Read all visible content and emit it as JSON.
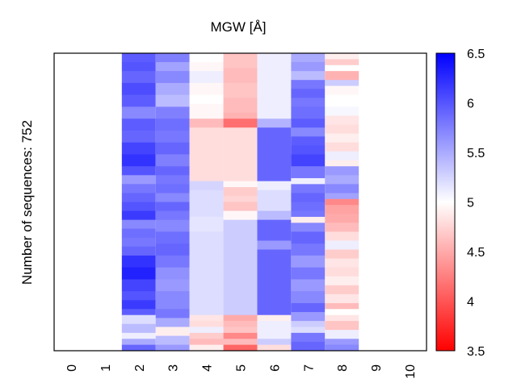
{
  "chart_data": {
    "type": "heatmap",
    "title": "MGW [Å]",
    "ylabel": "Number of sequences: 752",
    "xlabel": "",
    "x_ticks": [
      "0",
      "1",
      "2",
      "3",
      "4",
      "5",
      "6",
      "7",
      "8",
      "9",
      "10"
    ],
    "n_rows": 752,
    "colorbar": {
      "colormap": "bwr",
      "vmin": 3.5,
      "vmax": 6.5,
      "ticks": [
        "3.5",
        "4",
        "4.5",
        "5",
        "5.5",
        "6",
        "6.5"
      ],
      "low_color": "#ff0000",
      "mid_color": "#ffffff",
      "high_color": "#0000ff"
    },
    "columns": [
      {
        "x": 2,
        "bands": [
          [
            0.0,
            5.95
          ],
          [
            0.03,
            6.0
          ],
          [
            0.06,
            5.9
          ],
          [
            0.1,
            6.05
          ],
          [
            0.14,
            5.95
          ],
          [
            0.18,
            5.7
          ],
          [
            0.22,
            5.95
          ],
          [
            0.26,
            5.9
          ],
          [
            0.3,
            6.1
          ],
          [
            0.34,
            6.2
          ],
          [
            0.38,
            6.0
          ],
          [
            0.41,
            5.6
          ],
          [
            0.44,
            5.8
          ],
          [
            0.47,
            5.9
          ],
          [
            0.5,
            6.0
          ],
          [
            0.53,
            6.15
          ],
          [
            0.56,
            5.7
          ],
          [
            0.59,
            5.85
          ],
          [
            0.62,
            5.8
          ],
          [
            0.65,
            5.9
          ],
          [
            0.68,
            6.2
          ],
          [
            0.72,
            6.3
          ],
          [
            0.76,
            6.1
          ],
          [
            0.8,
            6.0
          ],
          [
            0.83,
            6.15
          ],
          [
            0.86,
            5.95
          ],
          [
            0.88,
            5.2
          ],
          [
            0.91,
            5.4
          ],
          [
            0.94,
            5.1
          ],
          [
            0.96,
            5.5
          ],
          [
            0.98,
            5.9
          ]
        ]
      },
      {
        "x": 3,
        "bands": [
          [
            0.0,
            5.75
          ],
          [
            0.03,
            5.55
          ],
          [
            0.06,
            5.7
          ],
          [
            0.1,
            5.5
          ],
          [
            0.14,
            5.4
          ],
          [
            0.18,
            5.75
          ],
          [
            0.22,
            5.85
          ],
          [
            0.26,
            5.8
          ],
          [
            0.3,
            5.9
          ],
          [
            0.34,
            5.75
          ],
          [
            0.38,
            5.9
          ],
          [
            0.41,
            5.8
          ],
          [
            0.44,
            5.85
          ],
          [
            0.47,
            5.7
          ],
          [
            0.5,
            5.9
          ],
          [
            0.53,
            5.8
          ],
          [
            0.56,
            5.7
          ],
          [
            0.6,
            5.85
          ],
          [
            0.64,
            5.9
          ],
          [
            0.68,
            5.8
          ],
          [
            0.72,
            5.65
          ],
          [
            0.76,
            5.6
          ],
          [
            0.8,
            5.7
          ],
          [
            0.86,
            5.8
          ],
          [
            0.89,
            5.5
          ],
          [
            0.92,
            4.9
          ],
          [
            0.95,
            5.4
          ],
          [
            0.98,
            5.6
          ]
        ]
      },
      {
        "x": 4,
        "bands": [
          [
            0.0,
            5.0
          ],
          [
            0.03,
            4.95
          ],
          [
            0.06,
            5.1
          ],
          [
            0.1,
            4.95
          ],
          [
            0.14,
            5.0
          ],
          [
            0.17,
            4.95
          ],
          [
            0.2,
            4.95
          ],
          [
            0.22,
            4.6
          ],
          [
            0.25,
            4.8
          ],
          [
            0.3,
            4.8
          ],
          [
            0.35,
            4.8
          ],
          [
            0.4,
            4.8
          ],
          [
            0.43,
            5.25
          ],
          [
            0.46,
            5.2
          ],
          [
            0.5,
            5.2
          ],
          [
            0.55,
            5.15
          ],
          [
            0.6,
            5.2
          ],
          [
            0.65,
            5.2
          ],
          [
            0.7,
            5.2
          ],
          [
            0.75,
            5.2
          ],
          [
            0.8,
            5.2
          ],
          [
            0.85,
            5.2
          ],
          [
            0.88,
            4.85
          ],
          [
            0.9,
            4.8
          ],
          [
            0.92,
            5.1
          ],
          [
            0.94,
            4.7
          ],
          [
            0.96,
            4.6
          ],
          [
            0.98,
            4.9
          ]
        ]
      },
      {
        "x": 5,
        "bands": [
          [
            0.0,
            4.65
          ],
          [
            0.05,
            4.6
          ],
          [
            0.1,
            4.65
          ],
          [
            0.15,
            4.6
          ],
          [
            0.2,
            4.55
          ],
          [
            0.22,
            4.15
          ],
          [
            0.25,
            4.8
          ],
          [
            0.3,
            4.8
          ],
          [
            0.35,
            4.8
          ],
          [
            0.4,
            4.8
          ],
          [
            0.43,
            4.95
          ],
          [
            0.45,
            4.7
          ],
          [
            0.48,
            4.75
          ],
          [
            0.5,
            4.65
          ],
          [
            0.53,
            4.95
          ],
          [
            0.56,
            5.3
          ],
          [
            0.6,
            5.3
          ],
          [
            0.65,
            5.3
          ],
          [
            0.7,
            5.3
          ],
          [
            0.75,
            5.3
          ],
          [
            0.8,
            5.3
          ],
          [
            0.85,
            5.3
          ],
          [
            0.88,
            4.5
          ],
          [
            0.9,
            4.6
          ],
          [
            0.92,
            4.65
          ],
          [
            0.94,
            4.3
          ],
          [
            0.96,
            4.6
          ],
          [
            0.98,
            4.1
          ]
        ]
      },
      {
        "x": 6,
        "bands": [
          [
            0.0,
            5.1
          ],
          [
            0.05,
            5.1
          ],
          [
            0.1,
            5.1
          ],
          [
            0.15,
            5.1
          ],
          [
            0.2,
            5.1
          ],
          [
            0.22,
            5.45
          ],
          [
            0.25,
            5.9
          ],
          [
            0.3,
            5.9
          ],
          [
            0.35,
            5.9
          ],
          [
            0.4,
            5.9
          ],
          [
            0.43,
            5.1
          ],
          [
            0.46,
            5.2
          ],
          [
            0.5,
            5.2
          ],
          [
            0.53,
            5.4
          ],
          [
            0.56,
            5.9
          ],
          [
            0.6,
            5.9
          ],
          [
            0.63,
            5.6
          ],
          [
            0.66,
            5.9
          ],
          [
            0.7,
            5.9
          ],
          [
            0.75,
            5.9
          ],
          [
            0.8,
            5.9
          ],
          [
            0.85,
            5.9
          ],
          [
            0.88,
            4.9
          ],
          [
            0.9,
            5.1
          ],
          [
            0.93,
            5.1
          ],
          [
            0.96,
            5.3
          ],
          [
            0.98,
            4.8
          ]
        ]
      },
      {
        "x": 7,
        "bands": [
          [
            0.0,
            5.5
          ],
          [
            0.03,
            5.6
          ],
          [
            0.06,
            5.4
          ],
          [
            0.09,
            5.8
          ],
          [
            0.12,
            5.9
          ],
          [
            0.15,
            5.8
          ],
          [
            0.18,
            5.85
          ],
          [
            0.22,
            5.95
          ],
          [
            0.25,
            5.7
          ],
          [
            0.28,
            5.95
          ],
          [
            0.31,
            6.0
          ],
          [
            0.34,
            6.1
          ],
          [
            0.38,
            5.8
          ],
          [
            0.42,
            5.1
          ],
          [
            0.44,
            5.8
          ],
          [
            0.47,
            5.9
          ],
          [
            0.5,
            5.85
          ],
          [
            0.53,
            5.8
          ],
          [
            0.55,
            4.9
          ],
          [
            0.57,
            5.7
          ],
          [
            0.6,
            5.9
          ],
          [
            0.64,
            5.8
          ],
          [
            0.68,
            5.6
          ],
          [
            0.72,
            5.8
          ],
          [
            0.76,
            5.6
          ],
          [
            0.8,
            5.7
          ],
          [
            0.84,
            5.9
          ],
          [
            0.87,
            5.6
          ],
          [
            0.9,
            5.3
          ],
          [
            0.92,
            5.2
          ],
          [
            0.94,
            5.8
          ],
          [
            0.97,
            5.9
          ]
        ]
      },
      {
        "x": 8,
        "bands": [
          [
            0.0,
            4.9
          ],
          [
            0.02,
            4.7
          ],
          [
            0.04,
            5.0
          ],
          [
            0.06,
            4.55
          ],
          [
            0.09,
            5.3
          ],
          [
            0.11,
            4.95
          ],
          [
            0.14,
            5.0
          ],
          [
            0.18,
            5.05
          ],
          [
            0.21,
            4.85
          ],
          [
            0.24,
            4.8
          ],
          [
            0.27,
            4.9
          ],
          [
            0.3,
            4.8
          ],
          [
            0.33,
            5.1
          ],
          [
            0.36,
            4.9
          ],
          [
            0.38,
            5.6
          ],
          [
            0.41,
            5.5
          ],
          [
            0.44,
            5.7
          ],
          [
            0.47,
            5.55
          ],
          [
            0.49,
            4.3
          ],
          [
            0.51,
            4.45
          ],
          [
            0.54,
            4.5
          ],
          [
            0.57,
            4.6
          ],
          [
            0.6,
            4.8
          ],
          [
            0.63,
            5.1
          ],
          [
            0.66,
            4.7
          ],
          [
            0.69,
            4.85
          ],
          [
            0.72,
            4.8
          ],
          [
            0.75,
            4.9
          ],
          [
            0.78,
            4.7
          ],
          [
            0.81,
            4.85
          ],
          [
            0.84,
            4.6
          ],
          [
            0.86,
            5.0
          ],
          [
            0.88,
            4.85
          ],
          [
            0.9,
            4.65
          ],
          [
            0.93,
            5.1
          ],
          [
            0.96,
            5.6
          ],
          [
            0.98,
            5.7
          ]
        ]
      }
    ]
  }
}
